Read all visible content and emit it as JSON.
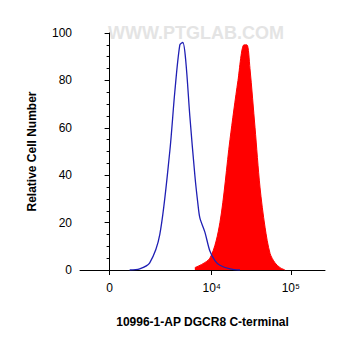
{
  "chart_data": {
    "type": "histogram",
    "xlabel": "10996-1-AP DGCR8 C-terminal",
    "ylabel": "Relative Cell Number",
    "annotations": [
      "WWW.PTGLAB.COM"
    ],
    "xlim": [
      -1000,
      270000
    ],
    "xticks": [
      0,
      {
        "value": 10000,
        "label": "10⁴"
      },
      {
        "value": 100000,
        "label": "10⁵"
      }
    ],
    "ylim": [
      0,
      100
    ],
    "yticks": [
      0,
      20,
      40,
      60,
      80,
      100
    ],
    "grid": false,
    "series": [
      {
        "type": "line",
        "color": "#1f1fb4",
        "x": [
          634,
          1018,
          1491,
          2095,
          2870,
          3344,
          3897,
          4260,
          4660,
          5250,
          6090,
          6660,
          7060,
          8180,
          9470,
          10970,
          12690,
          17010,
          22740
        ],
        "values": [
          0,
          0.5,
          3,
          15,
          50,
          75,
          95,
          96,
          88,
          65,
          40,
          28,
          22,
          16,
          8,
          4,
          2,
          0.5,
          0
        ]
      },
      {
        "type": "area",
        "color": "#ff0000",
        "x": [
          6090,
          9470,
          12690,
          17010,
          21490,
          25590,
          27900,
          30460,
          35300,
          40750,
          47230,
          54640,
          63180,
          73060,
          84580
        ],
        "values": [
          1,
          5,
          20,
          55,
          80,
          95,
          95,
          85,
          60,
          35,
          18,
          7,
          3,
          1,
          0
        ]
      }
    ]
  }
}
